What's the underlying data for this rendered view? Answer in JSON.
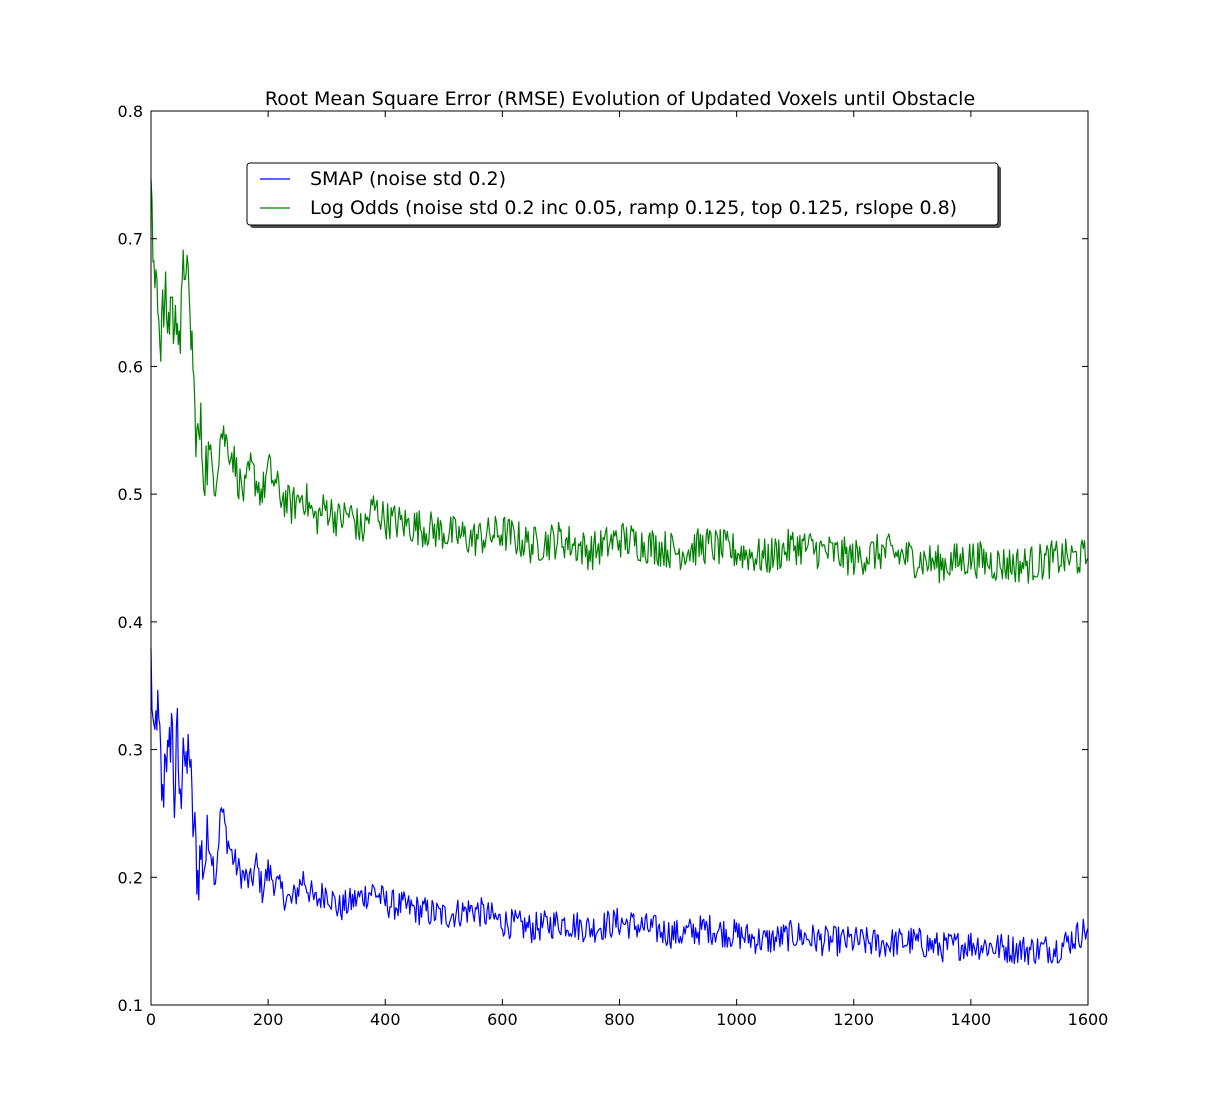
{
  "chart_data": {
    "type": "line",
    "title": "Root Mean Square Error (RMSE) Evolution of Updated Voxels until Obstacle",
    "xlabel": "",
    "ylabel": "",
    "xlim": [
      0,
      1600
    ],
    "ylim": [
      0.1,
      0.8
    ],
    "xticks": [
      0,
      200,
      400,
      600,
      800,
      1000,
      1200,
      1400,
      1600
    ],
    "yticks": [
      0.1,
      0.2,
      0.3,
      0.4,
      0.5,
      0.6,
      0.7,
      0.8
    ],
    "xtick_labels": [
      "0",
      "200",
      "400",
      "600",
      "800",
      "1000",
      "1200",
      "1400",
      "1600"
    ],
    "ytick_labels": [
      "0.1",
      "0.2",
      "0.3",
      "0.4",
      "0.5",
      "0.6",
      "0.7",
      "0.8"
    ],
    "grid": false,
    "legend_position": "upper-center",
    "series": [
      {
        "name": "SMAP (noise std 0.2)",
        "color": "#0000ff",
        "x": [
          0,
          5,
          10,
          15,
          20,
          25,
          30,
          35,
          40,
          45,
          50,
          55,
          60,
          65,
          70,
          75,
          80,
          85,
          90,
          100,
          110,
          120,
          130,
          140,
          150,
          160,
          170,
          180,
          190,
          200,
          220,
          240,
          260,
          280,
          300,
          320,
          340,
          360,
          380,
          400,
          450,
          500,
          550,
          600,
          650,
          700,
          750,
          800,
          850,
          900,
          950,
          1000,
          1050,
          1100,
          1150,
          1200,
          1250,
          1300,
          1350,
          1400,
          1450,
          1500,
          1550,
          1600
        ],
        "y": [
          0.37,
          0.29,
          0.335,
          0.3,
          0.255,
          0.31,
          0.28,
          0.33,
          0.26,
          0.31,
          0.25,
          0.32,
          0.27,
          0.31,
          0.25,
          0.23,
          0.2,
          0.22,
          0.21,
          0.23,
          0.2,
          0.255,
          0.23,
          0.215,
          0.205,
          0.2,
          0.195,
          0.21,
          0.19,
          0.205,
          0.19,
          0.18,
          0.2,
          0.18,
          0.19,
          0.175,
          0.18,
          0.185,
          0.19,
          0.18,
          0.175,
          0.17,
          0.175,
          0.165,
          0.16,
          0.165,
          0.16,
          0.165,
          0.16,
          0.155,
          0.16,
          0.155,
          0.15,
          0.155,
          0.15,
          0.15,
          0.148,
          0.15,
          0.145,
          0.148,
          0.145,
          0.143,
          0.145,
          0.16
        ]
      },
      {
        "name": "Log Odds (noise std 0.2 inc 0.05, ramp 0.125, top 0.125, rslope 0.8)",
        "color": "#008000",
        "x": [
          0,
          5,
          10,
          15,
          20,
          25,
          30,
          35,
          40,
          45,
          50,
          55,
          60,
          65,
          70,
          75,
          80,
          85,
          90,
          100,
          110,
          120,
          130,
          140,
          150,
          160,
          170,
          180,
          190,
          200,
          220,
          240,
          260,
          280,
          300,
          320,
          340,
          360,
          380,
          400,
          450,
          500,
          550,
          600,
          650,
          700,
          750,
          800,
          850,
          900,
          950,
          1000,
          1050,
          1100,
          1150,
          1200,
          1250,
          1300,
          1350,
          1400,
          1450,
          1500,
          1550,
          1600
        ],
        "y": [
          0.74,
          0.66,
          0.68,
          0.62,
          0.64,
          0.65,
          0.63,
          0.66,
          0.62,
          0.65,
          0.62,
          0.67,
          0.69,
          0.64,
          0.62,
          0.56,
          0.54,
          0.55,
          0.52,
          0.53,
          0.51,
          0.55,
          0.54,
          0.53,
          0.51,
          0.5,
          0.52,
          0.51,
          0.5,
          0.52,
          0.5,
          0.49,
          0.5,
          0.48,
          0.49,
          0.48,
          0.485,
          0.47,
          0.49,
          0.48,
          0.475,
          0.47,
          0.465,
          0.47,
          0.46,
          0.465,
          0.455,
          0.465,
          0.46,
          0.455,
          0.46,
          0.455,
          0.45,
          0.46,
          0.455,
          0.45,
          0.455,
          0.45,
          0.445,
          0.45,
          0.445,
          0.445,
          0.45,
          0.45
        ]
      }
    ]
  }
}
